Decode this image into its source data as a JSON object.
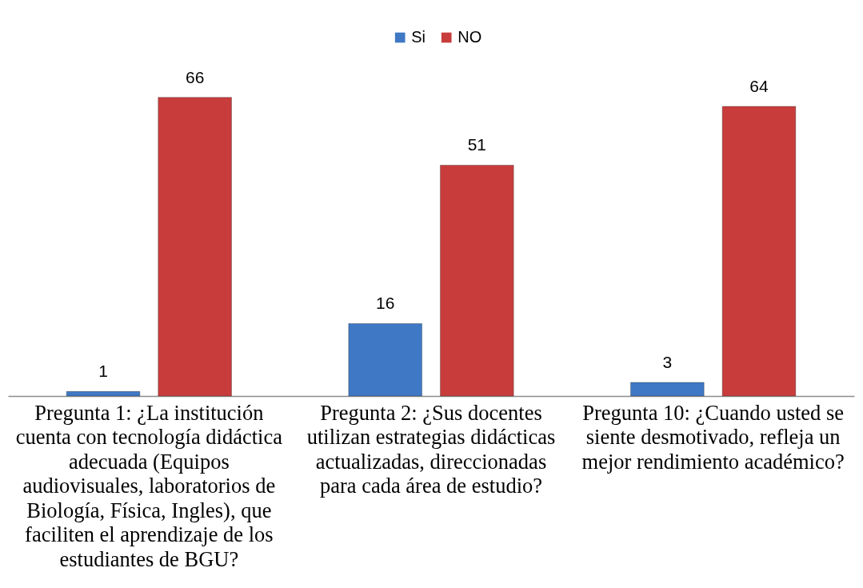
{
  "chart_data": {
    "type": "bar",
    "categories": [
      "Pregunta 1: ¿La institución cuenta con tecnología didáctica adecuada (Equipos audiovisuales, laboratorios de Biología, Física, Ingles), que faciliten el aprendizaje de los estudiantes de BGU?",
      "Pregunta 2: ¿Sus docentes utilizan estrategias didácticas actualizadas, direccionadas para cada área de estudio?",
      "Pregunta 10: ¿Cuando usted se siente desmotivado, refleja un mejor rendimiento académico?"
    ],
    "series": [
      {
        "name": "Si",
        "color": "#3f78c4",
        "values": [
          1,
          16,
          3
        ]
      },
      {
        "name": "NO",
        "color": "#c83c3c",
        "values": [
          66,
          51,
          64
        ]
      }
    ],
    "data_labels": true,
    "legend": "top",
    "grid": false,
    "tick_labels": "x"
  }
}
